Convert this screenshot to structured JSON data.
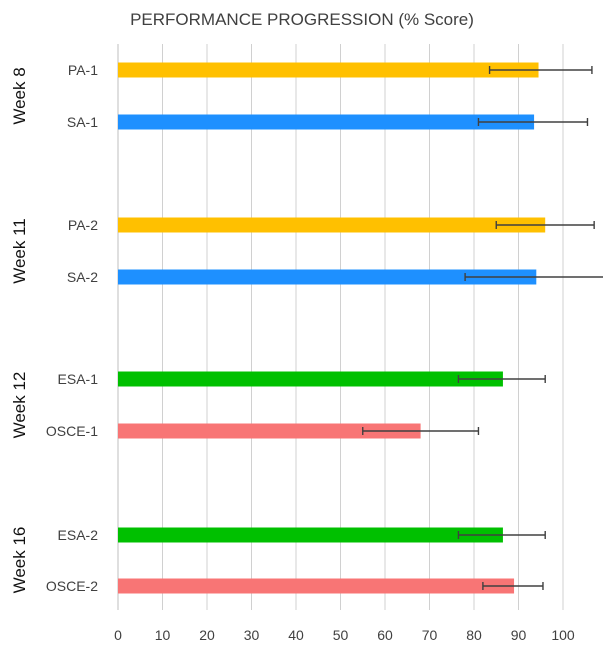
{
  "chart_data": {
    "type": "bar",
    "orientation": "horizontal",
    "title": "PERFORMANCE  PROGRESSION (% Score)",
    "xlim": [
      0,
      100
    ],
    "xticks": [
      0,
      10,
      20,
      30,
      40,
      50,
      60,
      70,
      80,
      90,
      100
    ],
    "grid": true,
    "legend": "none",
    "groups": [
      {
        "label": "Week  8",
        "bars": [
          {
            "label": "PA-1",
            "value": 94.5,
            "err_low": 83.5,
            "err_high": 106.5,
            "color": "#FFC000"
          },
          {
            "label": "SA-1",
            "value": 93.5,
            "err_low": 81.0,
            "err_high": 105.5,
            "color": "#1E90FF"
          }
        ]
      },
      {
        "label": "Week  11",
        "bars": [
          {
            "label": "PA-2",
            "value": 96.0,
            "err_low": 85.0,
            "err_high": 107.0,
            "color": "#FFC000"
          },
          {
            "label": "SA-2",
            "value": 94.0,
            "err_low": 78.0,
            "err_high": 110.0,
            "color": "#1E90FF"
          }
        ]
      },
      {
        "label": "Week  12",
        "bars": [
          {
            "label": "ESA-1",
            "value": 86.5,
            "err_low": 76.5,
            "err_high": 96.0,
            "color": "#00C000"
          },
          {
            "label": "OSCE-1",
            "value": 68.0,
            "err_low": 55.0,
            "err_high": 81.0,
            "color": "#F87575"
          }
        ]
      },
      {
        "label": "Week  16",
        "bars": [
          {
            "label": "ESA-2",
            "value": 86.5,
            "err_low": 76.5,
            "err_high": 96.0,
            "color": "#00C000"
          },
          {
            "label": "OSCE-2",
            "value": 89.0,
            "err_low": 82.0,
            "err_high": 95.5,
            "color": "#F87575"
          }
        ]
      }
    ]
  }
}
